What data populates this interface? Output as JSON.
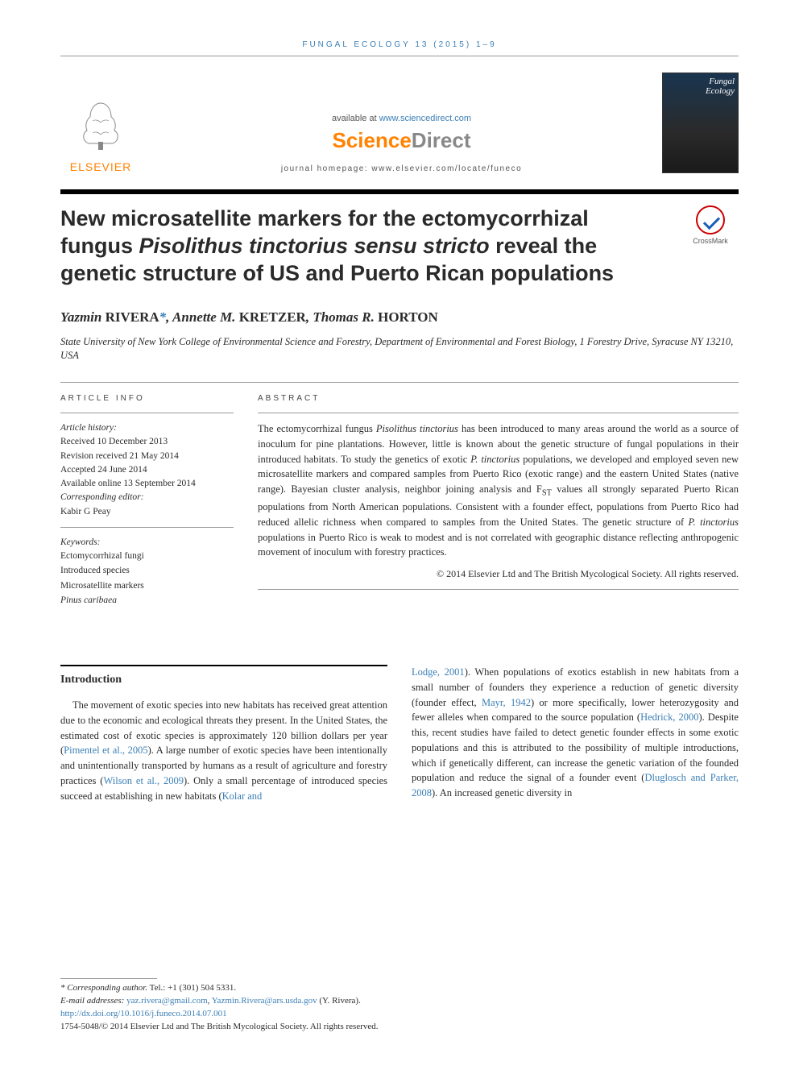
{
  "journal_ref": "FUNGAL ECOLOGY 13 (2015) 1–9",
  "header": {
    "available_prefix": "available at ",
    "available_url": "www.sciencedirect.com",
    "science_direct_a": "Science",
    "science_direct_b": "Direct",
    "homepage_label": "journal homepage: www.elsevier.com/locate/funeco",
    "elsevier": "ELSEVIER",
    "cover_journal_a": "Fungal",
    "cover_journal_b": "Ecology"
  },
  "crossmark": "CrossMark",
  "title": {
    "part1": "New microsatellite markers for the ectomycorrhizal fungus ",
    "italic": "Pisolithus tinctorius sensu stricto",
    "part2": " reveal the genetic structure of US and Puerto Rican populations"
  },
  "authors": [
    {
      "given": "Yazmin",
      "surname": "RIVERA",
      "corr": true
    },
    {
      "given": "Annette M.",
      "surname": "KRETZER",
      "corr": false
    },
    {
      "given": "Thomas R.",
      "surname": "HORTON",
      "corr": false
    }
  ],
  "affiliation": "State University of New York College of Environmental Science and Forestry, Department of Environmental and Forest Biology, 1 Forestry Drive, Syracuse NY 13210, USA",
  "info": {
    "heading": "ARTICLE INFO",
    "history_label": "Article history:",
    "history": [
      "Received 10 December 2013",
      "Revision received 21 May 2014",
      "Accepted 24 June 2014",
      "Available online 13 September 2014"
    ],
    "corr_editor_label": "Corresponding editor:",
    "corr_editor": "Kabir G Peay",
    "keywords_label": "Keywords:",
    "keywords": [
      {
        "text": "Ectomycorrhizal fungi",
        "italic": false
      },
      {
        "text": "Introduced species",
        "italic": false
      },
      {
        "text": "Microsatellite markers",
        "italic": false
      },
      {
        "text": "Pinus caribaea",
        "italic": true
      }
    ]
  },
  "abstract": {
    "heading": "ABSTRACT",
    "p1a": "The ectomycorrhizal fungus ",
    "p1b": "Pisolithus tinctorius",
    "p1c": " has been introduced to many areas around the world as a source of inoculum for pine plantations. However, little is known about the genetic structure of fungal populations in their introduced habitats. To study the genetics of exotic ",
    "p1d": "P. tinctorius",
    "p1e": " populations, we developed and employed seven new microsatellite markers and compared samples from Puerto Rico (exotic range) and the eastern United States (native range). Bayesian cluster analysis, neighbor joining analysis and F",
    "p1f": "ST",
    "p1g": " values all strongly separated Puerto Rican populations from North American populations. Consistent with a founder effect, populations from Puerto Rico had reduced allelic richness when compared to samples from the United States. The genetic structure of ",
    "p1h": "P. tinctorius",
    "p1i": " populations in Puerto Rico is weak to modest and is not correlated with geographic distance reflecting anthropogenic movement of inoculum with forestry practices.",
    "copyright": "© 2014 Elsevier Ltd and The British Mycological Society. All rights reserved."
  },
  "body": {
    "intro_heading": "Introduction",
    "col1": {
      "p1a": "The movement of exotic species into new habitats has received great attention due to the economic and ecological threats they present. In the United States, the estimated cost of exotic species is approximately 120 billion dollars per year (",
      "ref1": "Pimentel et al., 2005",
      "p1b": "). A large number of exotic species have been intentionally and unintentionally transported by humans as a result of agriculture and forestry practices (",
      "ref2": "Wilson et al., 2009",
      "p1c": "). Only a small percentage of introduced species succeed at establishing in new habitats (",
      "ref3": "Kolar and"
    },
    "col2": {
      "ref3b": "Lodge, 2001",
      "p1a": "). When populations of exotics establish in new habitats from a small number of founders they experience a reduction of genetic diversity (founder effect, ",
      "ref4": "Mayr, 1942",
      "p1b": ") or more specifically, lower heterozygosity and fewer alleles when compared to the source population (",
      "ref5": "Hedrick, 2000",
      "p1c": "). Despite this, recent studies have failed to detect genetic founder effects in some exotic populations and this is attributed to the possibility of multiple introductions, which if genetically different, can increase the genetic variation of the founded population and reduce the signal of a founder event (",
      "ref6": "Dluglosch and Parker, 2008",
      "p1d": "). An increased genetic diversity in"
    }
  },
  "footer": {
    "corr_label": "* Corresponding author.",
    "tel": " Tel.: +1 (301) 504 5331.",
    "email_label": "E-mail addresses: ",
    "email1": "yaz.rivera@gmail.com",
    "email2": "Yazmin.Rivera@ars.usda.gov",
    "email_suffix": " (Y. Rivera).",
    "doi": "http://dx.doi.org/10.1016/j.funeco.2014.07.001",
    "issn": "1754-5048/© 2014 Elsevier Ltd and The British Mycological Society. All rights reserved."
  },
  "colors": {
    "link": "#3b7fb5",
    "elsevier_orange": "#ff8200",
    "text": "#2b2b2b"
  }
}
